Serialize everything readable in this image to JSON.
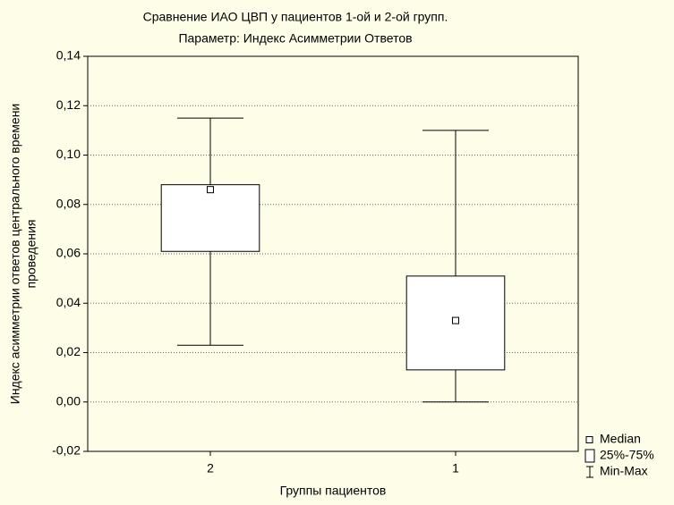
{
  "chart_data": {
    "type": "box",
    "title": "Сравнение ИАО ЦВП у пациентов 1-ой и 2-ой групп.",
    "subtitle": "Параметр: Индекс Асимметрии Ответов",
    "xlabel": "Группы пациентов",
    "ylabel": [
      "Индекс асимметрии ответов центрального времени",
      "проведения"
    ],
    "categories": [
      "2",
      "1"
    ],
    "min": [
      0.023,
      0.0
    ],
    "q1": [
      0.061,
      0.013
    ],
    "median": [
      0.086,
      0.033
    ],
    "q3": [
      0.088,
      0.051
    ],
    "max": [
      0.115,
      0.11
    ],
    "color": "#ffffff",
    "ylim": [
      -0.02,
      0.14
    ],
    "yticks": [
      {
        "value": -0.02,
        "label": "-0,02"
      },
      {
        "value": 0,
        "label": "0,00"
      },
      {
        "value": 0.02,
        "label": "0,02"
      },
      {
        "value": 0.04,
        "label": "0,04"
      },
      {
        "value": 0.06,
        "label": "0,06"
      },
      {
        "value": 0.08,
        "label": "0,08"
      },
      {
        "value": 0.1,
        "label": "0,10"
      },
      {
        "value": 0.12,
        "label": "0,12"
      },
      {
        "value": 0.14,
        "label": "0,14"
      }
    ],
    "grid": true,
    "legend": [
      "Median",
      "25%-75%",
      "Min-Max"
    ]
  }
}
